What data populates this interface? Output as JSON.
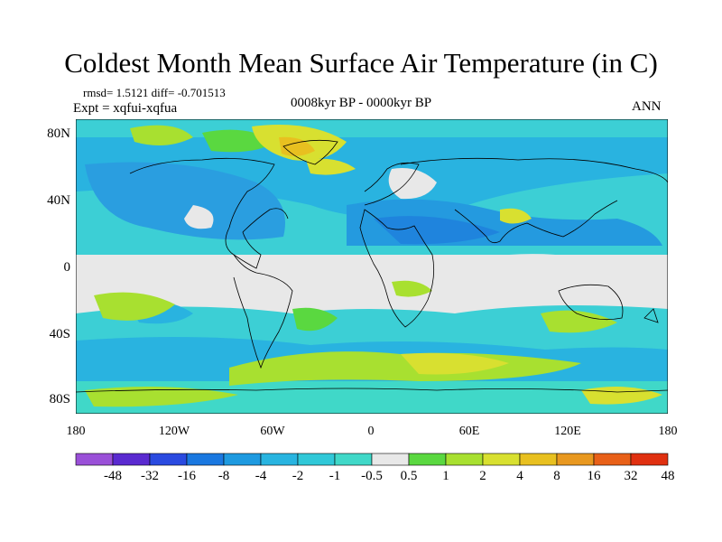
{
  "header": {
    "title": "Coldest Month Mean Surface Air Temperature (in C)",
    "stats": "rmsd= 1.5121 diff= -0.701513",
    "experiment": "Expt = xqfui-xqfua",
    "period": "0008kyr BP - 0000kyr BP",
    "season": "ANN"
  },
  "map": {
    "lat_labels": [
      "80N",
      "40N",
      "0",
      "40S",
      "80S"
    ],
    "lon_labels": [
      "180",
      "120W",
      "60W",
      "0",
      "60E",
      "120E",
      "180"
    ],
    "ocean_fill": "#e8e8e8",
    "coast_color": "#000000"
  },
  "colorbar": {
    "labels": [
      "-48",
      "-32",
      "-16",
      "-8",
      "-4",
      "-2",
      "-1",
      "-0.5",
      "0.5",
      "1",
      "2",
      "4",
      "8",
      "16",
      "32",
      "48"
    ],
    "colors": [
      "#9a50d8",
      "#5a2ad0",
      "#2a4ae0",
      "#1a78e0",
      "#1e9ae0",
      "#28b4e0",
      "#30c8d8",
      "#40d8c8",
      "#e8e8e8",
      "#5ad840",
      "#a8e030",
      "#d8e030",
      "#e8c020",
      "#e89820",
      "#e86018",
      "#e03010"
    ]
  }
}
